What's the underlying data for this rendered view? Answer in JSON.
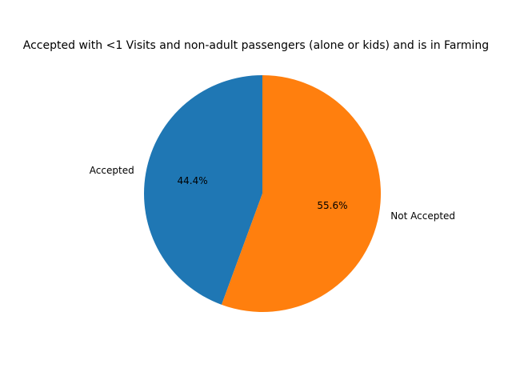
{
  "chart_data": {
    "type": "pie",
    "title": "Accepted with <1 Visits and non-adult passengers (alone or kids) and is in Farming",
    "categories": [
      "Accepted",
      "Not Accepted"
    ],
    "values": [
      44.4,
      55.6
    ],
    "value_labels": [
      "44.4%",
      "55.6%"
    ],
    "colors": [
      "#1f77b4",
      "#ff7f0e"
    ],
    "start_angle_deg": 90,
    "direction": "counterclockwise",
    "legend": "none"
  }
}
